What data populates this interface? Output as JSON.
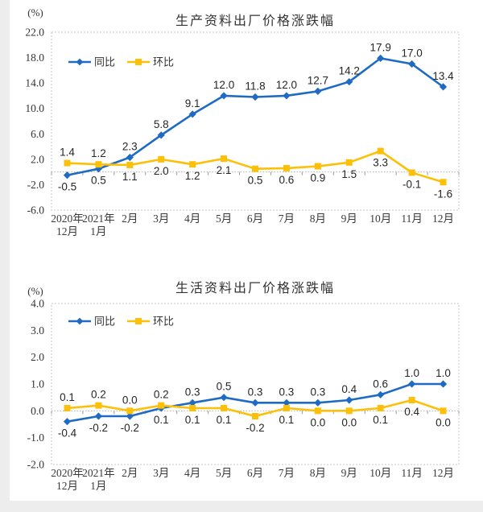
{
  "chart_data": [
    {
      "type": "line",
      "title": "生产资料出厂价格涨跌幅",
      "unit": "(%)",
      "ylim": [
        -6,
        22
      ],
      "ytick_step": 4,
      "yticks": [
        "22.0",
        "18.0",
        "14.0",
        "10.0",
        "6.0",
        "2.0",
        "-2.0",
        "-6.0"
      ],
      "grid": false,
      "legend_position": "top-left",
      "categories": [
        [
          "2020年",
          "12月"
        ],
        [
          "2021年",
          "1月"
        ],
        [
          "2月"
        ],
        [
          "3月"
        ],
        [
          "4月"
        ],
        [
          "5月"
        ],
        [
          "6月"
        ],
        [
          "7月"
        ],
        [
          "8月"
        ],
        [
          "9月"
        ],
        [
          "10月"
        ],
        [
          "11月"
        ],
        [
          "12月"
        ]
      ],
      "series": [
        {
          "name": "同比",
          "color": "#1f6bc4",
          "marker": "diamond",
          "values": [
            -0.5,
            0.5,
            2.3,
            5.8,
            9.1,
            12.0,
            11.8,
            12.0,
            12.7,
            14.2,
            17.9,
            17.0,
            13.4
          ],
          "label_pos": [
            "below",
            "below",
            "above",
            "above",
            "above",
            "above",
            "above",
            "above",
            "above",
            "above",
            "above",
            "above",
            "above"
          ]
        },
        {
          "name": "环比",
          "color": "#fdc008",
          "marker": "square",
          "values": [
            1.4,
            1.2,
            1.1,
            2.0,
            1.2,
            2.1,
            0.5,
            0.6,
            0.9,
            1.5,
            3.3,
            -0.1,
            -1.6
          ],
          "label_pos": [
            "above",
            "above",
            "below",
            "below",
            "below",
            "below",
            "below",
            "below",
            "below",
            "below",
            "below",
            "below",
            "below"
          ]
        }
      ]
    },
    {
      "type": "line",
      "title": "生活资料出厂价格涨跌幅",
      "unit": "(%)",
      "ylim": [
        -2,
        4
      ],
      "ytick_step": 1,
      "yticks": [
        "4.0",
        "3.0",
        "2.0",
        "1.0",
        "0.0",
        "-1.0",
        "-2.0"
      ],
      "grid": false,
      "legend_position": "top-left",
      "categories": [
        [
          "2020年",
          "12月"
        ],
        [
          "2021年",
          "1月"
        ],
        [
          "2月"
        ],
        [
          "3月"
        ],
        [
          "4月"
        ],
        [
          "5月"
        ],
        [
          "6月"
        ],
        [
          "7月"
        ],
        [
          "8月"
        ],
        [
          "9月"
        ],
        [
          "10月"
        ],
        [
          "11月"
        ],
        [
          "12月"
        ]
      ],
      "series": [
        {
          "name": "同比",
          "color": "#1f6bc4",
          "marker": "diamond",
          "values": [
            -0.4,
            -0.2,
            -0.2,
            0.1,
            0.3,
            0.5,
            0.3,
            0.3,
            0.3,
            0.4,
            0.6,
            1.0,
            1.0
          ],
          "label_pos": [
            "below",
            "below",
            "below",
            "below",
            "above",
            "above",
            "above",
            "above",
            "above",
            "above",
            "above",
            "above",
            "above"
          ]
        },
        {
          "name": "环比",
          "color": "#fdc008",
          "marker": "square",
          "values": [
            0.1,
            0.2,
            0.0,
            0.2,
            0.1,
            0.1,
            -0.2,
            0.1,
            0.0,
            0.0,
            0.1,
            0.4,
            0.0
          ],
          "label_pos": [
            "above",
            "above",
            "above",
            "above",
            "below",
            "below",
            "below",
            "below",
            "below",
            "below",
            "below",
            "below",
            "below"
          ]
        }
      ]
    }
  ]
}
